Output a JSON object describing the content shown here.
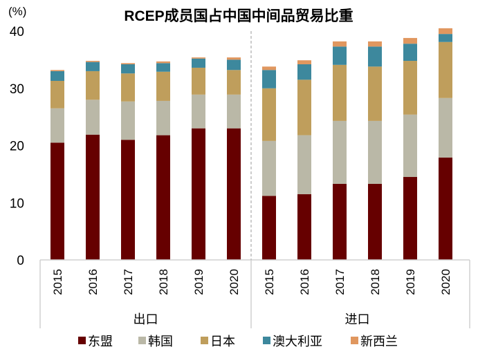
{
  "chart_data": {
    "type": "bar",
    "stacked": true,
    "title": "RCEP成员国占中国中间品贸易比重",
    "ylabel": "(%)",
    "xlabel": "",
    "ylim": [
      0,
      40
    ],
    "yticks": [
      0,
      10,
      20,
      30,
      40
    ],
    "grid": false,
    "legend_position": "bottom",
    "groups": [
      {
        "label": "出口",
        "categories": [
          "2015",
          "2016",
          "2017",
          "2018",
          "2019",
          "2020"
        ]
      },
      {
        "label": "进口",
        "categories": [
          "2015",
          "2016",
          "2017",
          "2018",
          "2019",
          "2020"
        ]
      }
    ],
    "series": [
      {
        "name": "东盟",
        "color": "#660000",
        "values": [
          20.5,
          21.9,
          21.0,
          21.8,
          23.0,
          23.0,
          11.2,
          11.5,
          13.3,
          13.3,
          14.5,
          17.9
        ]
      },
      {
        "name": "韩国",
        "color": "#BAB8A7",
        "values": [
          6.0,
          6.1,
          6.7,
          6.0,
          5.9,
          5.9,
          9.6,
          10.3,
          11.0,
          11.0,
          10.9,
          10.4
        ]
      },
      {
        "name": "日本",
        "color": "#BF9E5C",
        "values": [
          4.8,
          5.0,
          4.9,
          5.1,
          4.7,
          4.3,
          9.2,
          9.7,
          9.8,
          9.5,
          9.4,
          9.8
        ]
      },
      {
        "name": "澳大利亚",
        "color": "#3D889D",
        "values": [
          1.7,
          1.6,
          1.6,
          1.5,
          1.6,
          1.8,
          3.2,
          2.7,
          3.2,
          3.5,
          3.0,
          1.4
        ]
      },
      {
        "name": "新西兰",
        "color": "#E0975F",
        "values": [
          0.2,
          0.2,
          0.2,
          0.3,
          0.2,
          0.4,
          0.6,
          0.7,
          0.9,
          0.9,
          1.0,
          1.0
        ]
      }
    ]
  }
}
